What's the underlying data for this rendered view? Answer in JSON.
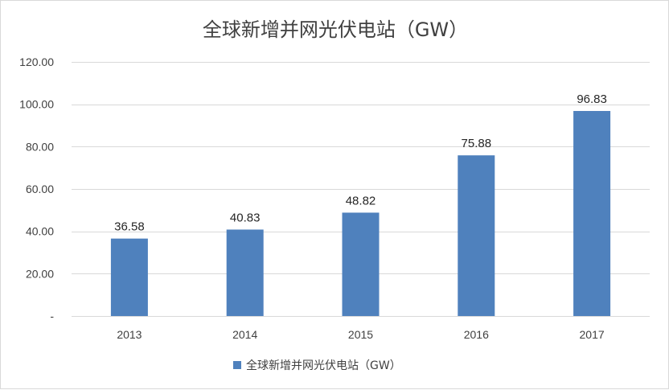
{
  "chart_data": {
    "type": "bar",
    "title": "全球新增并网光伏电站（GW）",
    "categories": [
      "2013",
      "2014",
      "2015",
      "2016",
      "2017"
    ],
    "values": [
      36.58,
      40.83,
      48.82,
      75.88,
      96.83
    ],
    "value_labels": [
      "36.58",
      "40.83",
      "48.82",
      "75.88",
      "96.83"
    ],
    "series": [
      {
        "name": "全球新增并网光伏电站（GW）",
        "values": [
          36.58,
          40.83,
          48.82,
          75.88,
          96.83
        ]
      }
    ],
    "ylim": [
      0,
      120
    ],
    "yticks": [
      0,
      20,
      40,
      60,
      80,
      100,
      120
    ],
    "ytick_labels": [
      "-",
      "20.00",
      "40.00",
      "60.00",
      "80.00",
      "100.00",
      "120.00"
    ],
    "xlabel": "",
    "ylabel": "",
    "grid": true,
    "legend_position": "bottom",
    "colors": {
      "bar": "#4f81bd",
      "grid": "#d9d9d9",
      "text": "#404040"
    }
  }
}
